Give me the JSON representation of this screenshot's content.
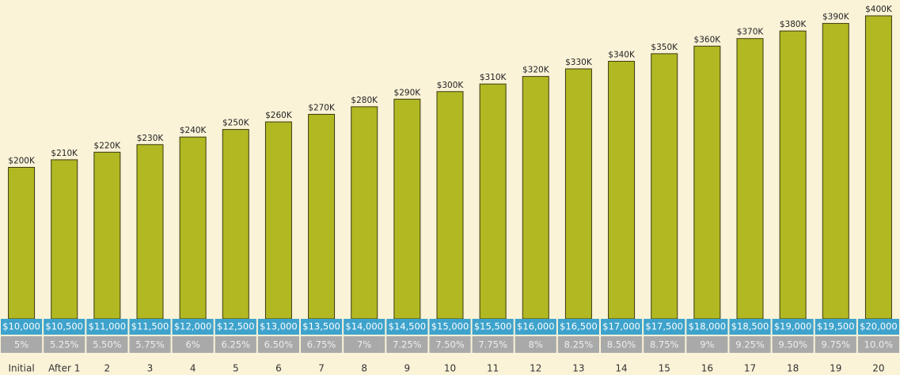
{
  "chart_data": {
    "type": "bar",
    "categories": [
      "Initial",
      "After 1",
      "2",
      "3",
      "4",
      "5",
      "6",
      "7",
      "8",
      "9",
      "10",
      "11",
      "12",
      "13",
      "14",
      "15",
      "16",
      "17",
      "18",
      "19",
      "20"
    ],
    "values": [
      200000,
      210000,
      220000,
      230000,
      240000,
      250000,
      260000,
      270000,
      280000,
      290000,
      300000,
      310000,
      320000,
      330000,
      340000,
      350000,
      360000,
      370000,
      380000,
      390000,
      400000
    ],
    "value_labels": [
      "$200K",
      "$210K",
      "$220K",
      "$230K",
      "$240K",
      "$250K",
      "$260K",
      "$270K",
      "$280K",
      "$290K",
      "$300K",
      "$310K",
      "$320K",
      "$330K",
      "$340K",
      "$350K",
      "$360K",
      "$370K",
      "$380K",
      "$390K",
      "$400K"
    ],
    "color": "#b1b822",
    "ylim": [
      0,
      400000
    ],
    "table": {
      "payments": [
        "$10,000",
        "$10,500",
        "$11,000",
        "$11,500",
        "$12,000",
        "$12,500",
        "$13,000",
        "$13,500",
        "$14,000",
        "$14,500",
        "$15,000",
        "$15,500",
        "$16,000",
        "$16,500",
        "$17,000",
        "$17,500",
        "$18,000",
        "$18,500",
        "$19,000",
        "$19,500",
        "$20,000"
      ],
      "rates": [
        "5%",
        "5.25%",
        "5.50%",
        "5.75%",
        "6%",
        "6.25%",
        "6.50%",
        "6.75%",
        "7%",
        "7.25%",
        "7.50%",
        "7.75%",
        "8%",
        "8.25%",
        "8.50%",
        "8.75%",
        "9%",
        "9.25%",
        "9.50%",
        "9.75%",
        "10.0%"
      ]
    }
  }
}
